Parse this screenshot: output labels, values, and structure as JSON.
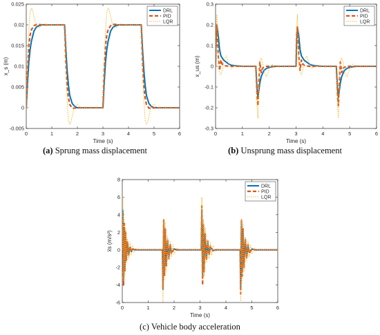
{
  "chart_data": [
    {
      "type": "line",
      "panel": "a",
      "caption_letter": "(a)",
      "caption_text": " Sprung mass displacement",
      "xlabel": "Time (s)",
      "ylabel": "x_s (m)",
      "xlim": [
        0,
        6
      ],
      "ylim": [
        -0.005,
        0.025
      ],
      "xticks": [
        "0",
        "1",
        "2",
        "3",
        "4",
        "5",
        "6"
      ],
      "yticks": [
        "-0.005",
        "0",
        "0.005",
        "0.01",
        "0.015",
        "0.02",
        "0.025"
      ],
      "legend": [
        "DRL",
        "PID",
        "LQR"
      ],
      "legend_position": "top-right",
      "series": [
        {
          "name": "DRL",
          "x": [
            0,
            0.05,
            0.1,
            0.15,
            0.2,
            0.3,
            0.4,
            0.5,
            0.6,
            0.8,
            1.0,
            1.2,
            1.4,
            1.5,
            1.55,
            1.6,
            1.65,
            1.7,
            1.8,
            1.9,
            2.0,
            2.2,
            2.5,
            2.8,
            3.0,
            3.05,
            3.1,
            3.15,
            3.2,
            3.3,
            3.4,
            3.5,
            3.6,
            3.8,
            4.0,
            4.3,
            4.5,
            4.55,
            4.6,
            4.65,
            4.7,
            4.8,
            4.9,
            5.0,
            5.2,
            5.5,
            6.0
          ],
          "y": [
            0,
            0.006,
            0.011,
            0.014,
            0.016,
            0.0185,
            0.0195,
            0.0198,
            0.02,
            0.02,
            0.02,
            0.02,
            0.02,
            0.02,
            0.014,
            0.009,
            0.0055,
            0.003,
            0.001,
            0.0003,
            0,
            0,
            0,
            0,
            0,
            0.006,
            0.011,
            0.014,
            0.016,
            0.0185,
            0.0195,
            0.0198,
            0.02,
            0.02,
            0.02,
            0.02,
            0.02,
            0.014,
            0.009,
            0.0055,
            0.003,
            0.001,
            0.0003,
            0,
            0,
            0,
            0
          ]
        },
        {
          "name": "PID",
          "x": [
            0,
            0.05,
            0.1,
            0.15,
            0.2,
            0.3,
            0.4,
            0.5,
            0.6,
            0.8,
            1.0,
            1.2,
            1.4,
            1.5,
            1.55,
            1.6,
            1.65,
            1.7,
            1.8,
            1.9,
            2.0,
            2.2,
            2.5,
            2.8,
            3.0,
            3.05,
            3.1,
            3.15,
            3.2,
            3.3,
            3.4,
            3.5,
            3.6,
            3.8,
            4.0,
            4.3,
            4.5,
            4.55,
            4.6,
            4.65,
            4.7,
            4.8,
            4.9,
            5.0,
            5.2,
            5.5,
            6.0
          ],
          "y": [
            0,
            0.009,
            0.015,
            0.0175,
            0.0188,
            0.0198,
            0.0201,
            0.0201,
            0.02,
            0.02,
            0.02,
            0.02,
            0.02,
            0.02,
            0.011,
            0.005,
            0.0025,
            0.0008,
            -0.0001,
            -0.0001,
            0,
            0,
            0,
            0,
            0,
            0.009,
            0.015,
            0.0175,
            0.0188,
            0.0198,
            0.0201,
            0.0201,
            0.02,
            0.02,
            0.02,
            0.02,
            0.02,
            0.011,
            0.005,
            0.0025,
            0.0008,
            -0.0001,
            -0.0001,
            0,
            0,
            0,
            0
          ]
        },
        {
          "name": "LQR",
          "x": [
            0,
            0.05,
            0.1,
            0.15,
            0.2,
            0.25,
            0.3,
            0.4,
            0.5,
            0.6,
            0.7,
            0.8,
            1.0,
            1.2,
            1.4,
            1.5,
            1.55,
            1.6,
            1.65,
            1.7,
            1.75,
            1.8,
            1.9,
            2.0,
            2.1,
            2.2,
            2.5,
            2.8,
            3.0,
            3.05,
            3.1,
            3.15,
            3.2,
            3.25,
            3.3,
            3.4,
            3.5,
            3.6,
            3.7,
            3.8,
            4.0,
            4.3,
            4.5,
            4.55,
            4.6,
            4.65,
            4.7,
            4.75,
            4.8,
            4.9,
            5.0,
            5.1,
            5.2,
            5.5,
            6.0
          ],
          "y": [
            0,
            0.01,
            0.019,
            0.023,
            0.024,
            0.0235,
            0.022,
            0.0195,
            0.0193,
            0.0198,
            0.0202,
            0.0201,
            0.02,
            0.02,
            0.02,
            0.02,
            0.011,
            0.002,
            -0.003,
            -0.004,
            -0.0035,
            -0.002,
            0.0005,
            0.0008,
            0.0002,
            0,
            0,
            0,
            0,
            0.01,
            0.019,
            0.023,
            0.024,
            0.0235,
            0.022,
            0.0195,
            0.0193,
            0.0198,
            0.0202,
            0.0201,
            0.02,
            0.02,
            0.02,
            0.011,
            0.002,
            -0.003,
            -0.004,
            -0.0035,
            -0.002,
            0.0005,
            0.0008,
            0.0002,
            0,
            0,
            0
          ]
        }
      ]
    },
    {
      "type": "line",
      "panel": "b",
      "caption_letter": "(b)",
      "caption_text": " Unsprung mass displacement",
      "xlabel": "Time (s)",
      "ylabel": "x_us (m)",
      "xlim": [
        0,
        6
      ],
      "ylim": [
        -0.3,
        0.3
      ],
      "xticks": [
        "0",
        "1",
        "2",
        "3",
        "4",
        "5",
        "6"
      ],
      "yticks": [
        "-0.3",
        "-0.2",
        "-0.1",
        "0",
        "0.1",
        "0.2",
        "0.3"
      ],
      "legend": [
        "DRL",
        "PID",
        "LQR"
      ],
      "legend_position": "top-right",
      "series": [
        {
          "name": "DRL",
          "x": [
            0,
            0.02,
            0.05,
            0.1,
            0.15,
            0.2,
            0.3,
            0.4,
            0.5,
            0.6,
            0.8,
            1.0,
            1.5,
            1.55,
            1.58,
            1.6,
            1.65,
            1.7,
            1.8,
            1.9,
            2.0,
            2.2,
            3.0,
            3.02,
            3.05,
            3.1,
            3.15,
            3.2,
            3.3,
            3.4,
            3.5,
            3.6,
            3.8,
            4.0,
            4.5,
            4.55,
            4.58,
            4.6,
            4.65,
            4.7,
            4.8,
            4.9,
            5.0,
            5.2,
            6.0
          ],
          "y": [
            0,
            0.12,
            0.2,
            0.15,
            0.08,
            0.05,
            0.03,
            0.02,
            0.01,
            0.005,
            0.002,
            0,
            0,
            -0.12,
            -0.15,
            -0.13,
            -0.08,
            -0.05,
            -0.02,
            -0.01,
            -0.005,
            0,
            0,
            0.12,
            0.19,
            0.15,
            0.08,
            0.05,
            0.03,
            0.02,
            0.01,
            0.005,
            0.002,
            0,
            0,
            -0.12,
            -0.15,
            -0.13,
            -0.08,
            -0.05,
            -0.02,
            -0.01,
            -0.005,
            0,
            0
          ]
        },
        {
          "name": "PID",
          "x": [
            0,
            0.02,
            0.05,
            0.08,
            0.1,
            0.15,
            0.2,
            0.25,
            0.3,
            0.4,
            0.5,
            0.6,
            0.8,
            1.0,
            1.5,
            1.55,
            1.58,
            1.6,
            1.65,
            1.7,
            1.75,
            1.8,
            1.9,
            2.0,
            2.2,
            3.0,
            3.02,
            3.05,
            3.08,
            3.1,
            3.15,
            3.2,
            3.25,
            3.3,
            3.4,
            3.5,
            3.6,
            3.8,
            4.0,
            4.5,
            4.55,
            4.58,
            4.6,
            4.65,
            4.7,
            4.75,
            4.8,
            4.9,
            5.0,
            5.2,
            6.0
          ],
          "y": [
            0,
            0.15,
            0.2,
            0.12,
            0.05,
            -0.02,
            0.03,
            0.01,
            0.005,
            0.002,
            0,
            0,
            0,
            0,
            0,
            -0.15,
            -0.19,
            -0.12,
            0.02,
            -0.03,
            -0.01,
            -0.005,
            0,
            0,
            0,
            0,
            0.15,
            0.19,
            0.12,
            0.05,
            -0.02,
            0.03,
            0.01,
            0.005,
            0.002,
            0,
            0,
            0,
            0,
            0,
            -0.15,
            -0.19,
            -0.12,
            0.02,
            -0.03,
            -0.01,
            -0.005,
            0,
            0,
            0,
            0
          ]
        },
        {
          "name": "LQR",
          "x": [
            0,
            0.02,
            0.05,
            0.08,
            0.1,
            0.15,
            0.2,
            0.25,
            0.3,
            0.35,
            0.4,
            0.45,
            0.5,
            0.6,
            0.7,
            0.8,
            1.0,
            1.5,
            1.55,
            1.58,
            1.6,
            1.65,
            1.7,
            1.75,
            1.8,
            1.85,
            1.9,
            1.95,
            2.0,
            2.1,
            2.2,
            2.3,
            2.5,
            3.0,
            3.02,
            3.05,
            3.08,
            3.1,
            3.15,
            3.2,
            3.25,
            3.3,
            3.35,
            3.4,
            3.45,
            3.5,
            3.6,
            3.7,
            3.8,
            4.0,
            4.5,
            4.55,
            4.58,
            4.6,
            4.65,
            4.7,
            4.75,
            4.8,
            4.85,
            4.9,
            4.95,
            5.0,
            5.1,
            5.2,
            5.3,
            5.5,
            6.0
          ],
          "y": [
            0,
            0.18,
            0.25,
            0.15,
            0.05,
            -0.03,
            -0.04,
            -0.02,
            0.02,
            0.04,
            0.05,
            0.03,
            0.01,
            -0.01,
            0.005,
            0,
            0,
            0,
            -0.2,
            -0.25,
            -0.15,
            0.03,
            0.04,
            0.02,
            -0.02,
            -0.04,
            -0.05,
            -0.03,
            -0.01,
            0.01,
            -0.005,
            0,
            0,
            0,
            0.18,
            0.25,
            0.15,
            0.05,
            -0.03,
            -0.04,
            -0.02,
            0.02,
            0.04,
            0.05,
            0.03,
            0.01,
            -0.01,
            0.005,
            0,
            0,
            0,
            -0.2,
            -0.25,
            -0.15,
            0.03,
            0.04,
            0.02,
            -0.02,
            -0.04,
            -0.05,
            -0.03,
            -0.01,
            0.01,
            -0.005,
            0,
            0,
            0
          ]
        }
      ]
    },
    {
      "type": "line",
      "panel": "c",
      "caption_letter": "(c)",
      "caption_text": " Vehicle body acceleration",
      "xlabel": "Time (s)",
      "ylabel": "ẍs (m/s²)",
      "xlim": [
        0,
        6
      ],
      "ylim": [
        -6,
        8
      ],
      "xticks": [
        "0",
        "1",
        "2",
        "3",
        "4",
        "5",
        "6"
      ],
      "yticks": [
        "-6",
        "-4",
        "-2",
        "0",
        "2",
        "4",
        "6",
        "8"
      ],
      "legend": [
        "DRL",
        "PID",
        "LQR"
      ],
      "legend_position": "top-right",
      "series": [
        {
          "name": "DRL",
          "x": [
            0,
            0.02,
            0.05,
            0.08,
            0.1,
            0.13,
            0.16,
            0.2,
            0.25,
            0.3,
            0.35,
            0.4,
            0.5,
            0.6,
            1.55,
            1.57,
            1.6,
            1.63,
            1.66,
            1.7,
            1.75,
            1.8,
            1.85,
            1.9,
            2.0,
            2.1,
            3.05,
            3.07,
            3.1,
            3.13,
            3.16,
            3.2,
            3.25,
            3.3,
            3.35,
            3.4,
            3.5,
            3.6,
            4.55,
            4.57,
            4.6,
            4.63,
            4.66,
            4.7,
            4.75,
            4.8,
            4.85,
            4.9,
            5.0,
            5.1,
            6.0
          ],
          "y": [
            0,
            4.5,
            -3,
            2.5,
            -2,
            1.5,
            -1,
            0.8,
            -0.5,
            0.3,
            -0.2,
            0.1,
            0,
            0,
            0,
            -4.5,
            3,
            -2.5,
            2,
            -1.5,
            1,
            -0.8,
            0.5,
            -0.3,
            0.1,
            0,
            0,
            4.5,
            -3,
            2.5,
            -2,
            1.5,
            -1,
            0.8,
            -0.5,
            0.3,
            -0.1,
            0,
            0,
            -4.5,
            3,
            -2.5,
            2,
            -1.5,
            1,
            -0.8,
            0.5,
            -0.3,
            0.1,
            0,
            0
          ]
        },
        {
          "name": "PID",
          "x": [
            0,
            0.02,
            0.05,
            0.08,
            0.1,
            0.13,
            0.16,
            0.2,
            0.25,
            0.3,
            0.35,
            0.4,
            0.5,
            0.6,
            1.55,
            1.57,
            1.6,
            1.63,
            1.66,
            1.7,
            1.75,
            1.8,
            1.85,
            1.9,
            2.0,
            2.1,
            3.05,
            3.07,
            3.1,
            3.13,
            3.16,
            3.2,
            3.25,
            3.3,
            3.35,
            3.4,
            3.5,
            3.6,
            4.55,
            4.57,
            4.6,
            4.63,
            4.66,
            4.7,
            4.75,
            4.8,
            4.85,
            4.9,
            5.0,
            5.1,
            6.0
          ],
          "y": [
            0,
            4,
            -4,
            3,
            -2.5,
            2,
            -1.2,
            1,
            -0.6,
            0.4,
            -0.2,
            0.1,
            0,
            0,
            0,
            -4.5,
            3.5,
            -3,
            2.5,
            -2,
            1.2,
            -1,
            0.6,
            -0.4,
            0.1,
            0,
            0,
            5,
            -4,
            3,
            -2.5,
            2,
            -1.2,
            1,
            -0.6,
            0.4,
            -0.1,
            0,
            0,
            -5,
            3.5,
            -3,
            2.5,
            -2,
            1.2,
            -1,
            0.6,
            -0.4,
            0.1,
            0,
            0
          ]
        },
        {
          "name": "LQR",
          "x": [
            0,
            0.02,
            0.05,
            0.08,
            0.1,
            0.13,
            0.16,
            0.2,
            0.25,
            0.3,
            0.35,
            0.4,
            0.45,
            0.5,
            0.6,
            0.7,
            1.55,
            1.57,
            1.6,
            1.63,
            1.66,
            1.7,
            1.75,
            1.8,
            1.85,
            1.9,
            1.95,
            2.0,
            2.1,
            2.2,
            3.05,
            3.07,
            3.1,
            3.13,
            3.16,
            3.2,
            3.25,
            3.3,
            3.35,
            3.4,
            3.45,
            3.5,
            3.6,
            3.7,
            4.55,
            4.57,
            4.6,
            4.63,
            4.66,
            4.7,
            4.75,
            4.8,
            4.85,
            4.9,
            4.95,
            5.0,
            5.1,
            5.2,
            6.0
          ],
          "y": [
            0,
            6,
            -3.5,
            3.5,
            -3,
            2.5,
            -1.5,
            1.2,
            -1,
            0.8,
            -0.6,
            0.5,
            -0.3,
            0.2,
            -0.1,
            0,
            0,
            -6,
            3.5,
            -3.5,
            3,
            -2.5,
            1.5,
            -1.2,
            1,
            -0.8,
            0.6,
            -0.5,
            0.2,
            0,
            0,
            6,
            -3.5,
            3.5,
            -3,
            2.5,
            -1.5,
            1.2,
            -1,
            0.8,
            -0.6,
            0.5,
            -0.2,
            0,
            0,
            -6,
            3.5,
            -3.5,
            3,
            -2.5,
            1.5,
            -1.2,
            1,
            -0.8,
            0.6,
            -0.5,
            0.2,
            0,
            0
          ]
        }
      ]
    }
  ],
  "colors": {
    "DRL": "#0072BD",
    "PID": "#D95319",
    "LQR": "#EDB120"
  }
}
